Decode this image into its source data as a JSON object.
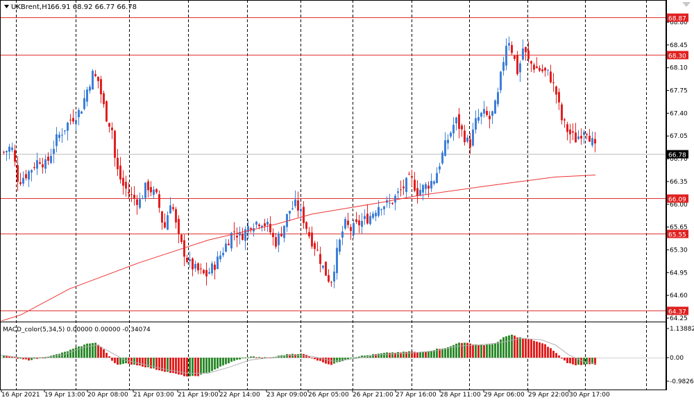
{
  "header": {
    "symbol_label": "UKBrent,H1",
    "ohlc_text": "66.91 68.92 66.77 66.78"
  },
  "macd": {
    "label": "MACD_color(5,34,5) 0.00000 0.00000 -0.34074",
    "ticks": [
      "1.13882",
      "0.00",
      "-0.9826"
    ]
  },
  "chart_data": [
    {
      "type": "candlestick",
      "title": "UKBrent,H1",
      "ylim": [
        64.19,
        69.02
      ],
      "y_ticks": [
        "68.80",
        "68.45",
        "68.10",
        "67.75",
        "67.40",
        "67.05",
        "66.70",
        "66.35",
        "66.00",
        "65.65",
        "65.30",
        "64.95",
        "64.60",
        "64.25"
      ],
      "x_ticks": [
        "16 Apr 2021",
        "19 Apr 13:00",
        "20 Apr 08:00",
        "21 Apr 03:00",
        "21 Apr 19:00",
        "22 Apr 14:00",
        "23 Apr 09:00",
        "26 Apr 05:00",
        "26 Apr 21:00",
        "27 Apr 16:00",
        "28 Apr 11:00",
        "29 Apr 06:00",
        "29 Apr 22:00",
        "30 Apr 17:00"
      ],
      "current_price": "66.78",
      "horizontal_levels": [
        "68.87",
        "68.30",
        "66.09",
        "65.55",
        "64.37"
      ],
      "moving_average_path": [
        [
          0,
          64.2
        ],
        [
          30,
          64.3
        ],
        [
          100,
          64.7
        ],
        [
          200,
          65.1
        ],
        [
          300,
          65.45
        ],
        [
          400,
          65.7
        ],
        [
          450,
          65.85
        ],
        [
          550,
          66.03
        ],
        [
          600,
          66.13
        ],
        [
          700,
          66.28
        ],
        [
          750,
          66.35
        ],
        [
          800,
          66.42
        ],
        [
          858,
          66.45
        ]
      ],
      "close_path": [
        [
          5,
          66.8
        ],
        [
          15,
          66.9
        ],
        [
          25,
          66.35
        ],
        [
          40,
          66.5
        ],
        [
          55,
          66.7
        ],
        [
          65,
          66.6
        ],
        [
          80,
          67.0
        ],
        [
          100,
          67.3
        ],
        [
          115,
          67.45
        ],
        [
          125,
          67.8
        ],
        [
          132,
          68.0
        ],
        [
          140,
          67.9
        ],
        [
          150,
          67.4
        ],
        [
          160,
          67.15
        ],
        [
          165,
          66.6
        ],
        [
          175,
          66.3
        ],
        [
          190,
          66.1
        ],
        [
          200,
          66.05
        ],
        [
          210,
          66.3
        ],
        [
          225,
          66.1
        ],
        [
          235,
          65.6
        ],
        [
          245,
          66.1
        ],
        [
          255,
          65.5
        ],
        [
          270,
          65.1
        ],
        [
          280,
          65.0
        ],
        [
          295,
          64.9
        ],
        [
          310,
          65.1
        ],
        [
          325,
          65.4
        ],
        [
          335,
          65.6
        ],
        [
          345,
          65.5
        ],
        [
          360,
          65.7
        ],
        [
          375,
          65.75
        ],
        [
          385,
          65.65
        ],
        [
          395,
          65.4
        ],
        [
          405,
          65.6
        ],
        [
          415,
          65.9
        ],
        [
          425,
          66.0
        ],
        [
          435,
          65.8
        ],
        [
          445,
          65.5
        ],
        [
          455,
          65.3
        ],
        [
          465,
          65.0
        ],
        [
          475,
          64.8
        ],
        [
          485,
          65.3
        ],
        [
          495,
          65.7
        ],
        [
          505,
          65.6
        ],
        [
          515,
          65.7
        ],
        [
          530,
          65.8
        ],
        [
          545,
          66.0
        ],
        [
          560,
          66.0
        ],
        [
          575,
          66.2
        ],
        [
          590,
          66.4
        ],
        [
          600,
          66.2
        ],
        [
          615,
          66.3
        ],
        [
          625,
          66.4
        ],
        [
          640,
          66.9
        ],
        [
          655,
          67.3
        ],
        [
          665,
          67.1
        ],
        [
          675,
          66.9
        ],
        [
          685,
          67.3
        ],
        [
          695,
          67.4
        ],
        [
          705,
          67.3
        ],
        [
          715,
          67.6
        ],
        [
          722,
          68.1
        ],
        [
          730,
          68.6
        ],
        [
          738,
          68.3
        ],
        [
          745,
          68.0
        ],
        [
          752,
          68.4
        ],
        [
          760,
          68.2
        ],
        [
          770,
          68.1
        ],
        [
          780,
          68.05
        ],
        [
          790,
          68.0
        ],
        [
          800,
          67.7
        ],
        [
          808,
          67.3
        ],
        [
          818,
          67.1
        ],
        [
          828,
          67.0
        ],
        [
          836,
          67.1
        ],
        [
          842,
          67.2
        ],
        [
          850,
          67.0
        ],
        [
          858,
          66.8
        ]
      ]
    },
    {
      "type": "bar",
      "title": "MACD_color(5,34,5)",
      "ylim": [
        -0.9826,
        1.13882
      ],
      "macd_path": [
        [
          0,
          0.1
        ],
        [
          15,
          0.05
        ],
        [
          25,
          -0.05
        ],
        [
          40,
          -0.1
        ],
        [
          50,
          -0.05
        ],
        [
          70,
          0.05
        ],
        [
          90,
          0.2
        ],
        [
          110,
          0.4
        ],
        [
          125,
          0.55
        ],
        [
          135,
          0.6
        ],
        [
          145,
          0.4
        ],
        [
          155,
          0.1
        ],
        [
          162,
          -0.2
        ],
        [
          170,
          -0.3
        ],
        [
          180,
          -0.25
        ],
        [
          195,
          -0.3
        ],
        [
          210,
          -0.4
        ],
        [
          225,
          -0.5
        ],
        [
          240,
          -0.6
        ],
        [
          255,
          -0.7
        ],
        [
          270,
          -0.8
        ],
        [
          285,
          -0.75
        ],
        [
          300,
          -0.6
        ],
        [
          315,
          -0.4
        ],
        [
          330,
          -0.2
        ],
        [
          345,
          -0.05
        ],
        [
          360,
          0.05
        ],
        [
          375,
          0.0
        ],
        [
          390,
          0.0
        ],
        [
          405,
          0.1
        ],
        [
          420,
          0.15
        ],
        [
          435,
          0.15
        ],
        [
          445,
          0.05
        ],
        [
          455,
          -0.1
        ],
        [
          465,
          -0.2
        ],
        [
          475,
          -0.3
        ],
        [
          485,
          -0.2
        ],
        [
          495,
          -0.1
        ],
        [
          505,
          0.0
        ],
        [
          515,
          0.05
        ],
        [
          530,
          0.1
        ],
        [
          545,
          0.15
        ],
        [
          560,
          0.2
        ],
        [
          575,
          0.2
        ],
        [
          590,
          0.25
        ],
        [
          600,
          0.2
        ],
        [
          615,
          0.25
        ],
        [
          630,
          0.35
        ],
        [
          645,
          0.4
        ],
        [
          660,
          0.6
        ],
        [
          675,
          0.55
        ],
        [
          690,
          0.5
        ],
        [
          705,
          0.5
        ],
        [
          715,
          0.6
        ],
        [
          725,
          0.8
        ],
        [
          735,
          0.9
        ],
        [
          745,
          0.8
        ],
        [
          755,
          0.75
        ],
        [
          765,
          0.7
        ],
        [
          775,
          0.6
        ],
        [
          785,
          0.5
        ],
        [
          795,
          0.3
        ],
        [
          805,
          0.05
        ],
        [
          815,
          -0.2
        ],
        [
          825,
          -0.3
        ],
        [
          835,
          -0.3
        ],
        [
          845,
          -0.25
        ],
        [
          855,
          -0.3
        ]
      ],
      "signal_path": [
        [
          0,
          0.1
        ],
        [
          30,
          0.0
        ],
        [
          60,
          0.0
        ],
        [
          90,
          0.1
        ],
        [
          120,
          0.4
        ],
        [
          140,
          0.5
        ],
        [
          160,
          0.2
        ],
        [
          180,
          -0.1
        ],
        [
          210,
          -0.3
        ],
        [
          240,
          -0.5
        ],
        [
          270,
          -0.65
        ],
        [
          300,
          -0.65
        ],
        [
          330,
          -0.4
        ],
        [
          360,
          -0.1
        ],
        [
          390,
          0.0
        ],
        [
          420,
          0.1
        ],
        [
          450,
          0.05
        ],
        [
          480,
          -0.15
        ],
        [
          510,
          -0.05
        ],
        [
          540,
          0.1
        ],
        [
          570,
          0.15
        ],
        [
          600,
          0.2
        ],
        [
          630,
          0.28
        ],
        [
          660,
          0.45
        ],
        [
          690,
          0.5
        ],
        [
          720,
          0.58
        ],
        [
          750,
          0.75
        ],
        [
          780,
          0.7
        ],
        [
          800,
          0.5
        ],
        [
          820,
          0.1
        ],
        [
          840,
          -0.15
        ],
        [
          858,
          -0.25
        ]
      ]
    }
  ],
  "colors": {
    "bull": "#3d7fd8",
    "bear": "#e02020",
    "level": "#e03030",
    "ma": "#ee3333",
    "macd_up": "#2e8b2e",
    "macd_down": "#e02020",
    "signal": "#b0b0b0",
    "grid": "#000000",
    "price_box": "#e02020",
    "current_box": "#000000"
  }
}
